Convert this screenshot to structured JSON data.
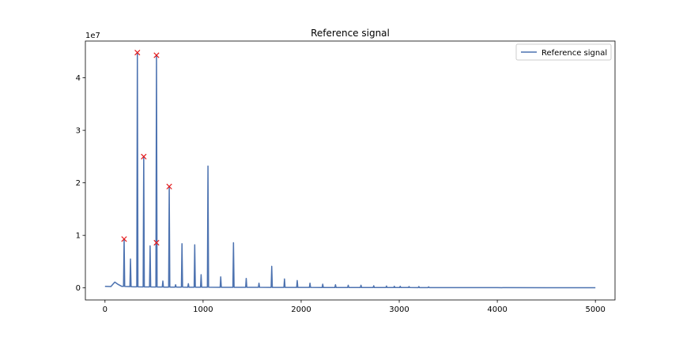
{
  "chart_data": {
    "type": "line",
    "title": "Reference signal",
    "xlabel": "",
    "ylabel": "",
    "xlim": [
      -200,
      5200
    ],
    "ylim": [
      -2300000,
      47000000
    ],
    "y_offset_label": "1e7",
    "x_ticks": [
      {
        "value": 0,
        "label": "0"
      },
      {
        "value": 1000,
        "label": "1000"
      },
      {
        "value": 2000,
        "label": "2000"
      },
      {
        "value": 3000,
        "label": "3000"
      },
      {
        "value": 4000,
        "label": "4000"
      },
      {
        "value": 5000,
        "label": "5000"
      }
    ],
    "y_ticks": [
      {
        "value": 0,
        "label": "0"
      },
      {
        "value": 10000000,
        "label": "1"
      },
      {
        "value": 20000000,
        "label": "2"
      },
      {
        "value": 30000000,
        "label": "3"
      },
      {
        "value": 40000000,
        "label": "4"
      }
    ],
    "grid": false,
    "legend": {
      "position": "top-right",
      "entries": [
        "Reference signal"
      ]
    },
    "series": [
      {
        "name": "Reference signal",
        "color": "#4c72b0",
        "baseline": [
          [
            0,
            300000
          ],
          [
            60,
            250000
          ],
          [
            100,
            1100000
          ],
          [
            130,
            700000
          ],
          [
            170,
            300000
          ],
          [
            300,
            200000
          ],
          [
            600,
            150000
          ],
          [
            1000,
            120000
          ],
          [
            1500,
            100000
          ],
          [
            2000,
            80000
          ],
          [
            2500,
            70000
          ],
          [
            3000,
            60000
          ],
          [
            3500,
            50000
          ],
          [
            4000,
            40000
          ],
          [
            4500,
            30000
          ],
          [
            5000,
            20000
          ]
        ],
        "peaks": [
          [
            195,
            9300000
          ],
          [
            260,
            5500000
          ],
          [
            330,
            44800000
          ],
          [
            395,
            25000000
          ],
          [
            460,
            8000000
          ],
          [
            525,
            44300000
          ],
          [
            590,
            1300000
          ],
          [
            655,
            19300000
          ],
          [
            720,
            600000
          ],
          [
            785,
            8400000
          ],
          [
            850,
            800000
          ],
          [
            915,
            8200000
          ],
          [
            980,
            2500000
          ],
          [
            1050,
            23200000
          ],
          [
            1180,
            2100000
          ],
          [
            1310,
            8600000
          ],
          [
            1440,
            1800000
          ],
          [
            1570,
            900000
          ],
          [
            1700,
            4100000
          ],
          [
            1830,
            1700000
          ],
          [
            1960,
            1400000
          ],
          [
            2090,
            900000
          ],
          [
            2220,
            700000
          ],
          [
            2350,
            600000
          ],
          [
            2480,
            500000
          ],
          [
            2610,
            500000
          ],
          [
            2740,
            400000
          ],
          [
            2870,
            350000
          ],
          [
            2950,
            300000
          ],
          [
            3010,
            300000
          ],
          [
            3100,
            250000
          ],
          [
            3200,
            250000
          ],
          [
            3300,
            200000
          ]
        ]
      }
    ],
    "markers": {
      "symbol": "x",
      "color": "#e41a1c",
      "points": [
        [
          195,
          9300000
        ],
        [
          330,
          44800000
        ],
        [
          395,
          25000000
        ],
        [
          525,
          44300000
        ],
        [
          525,
          8600000
        ],
        [
          655,
          19300000
        ]
      ]
    }
  }
}
